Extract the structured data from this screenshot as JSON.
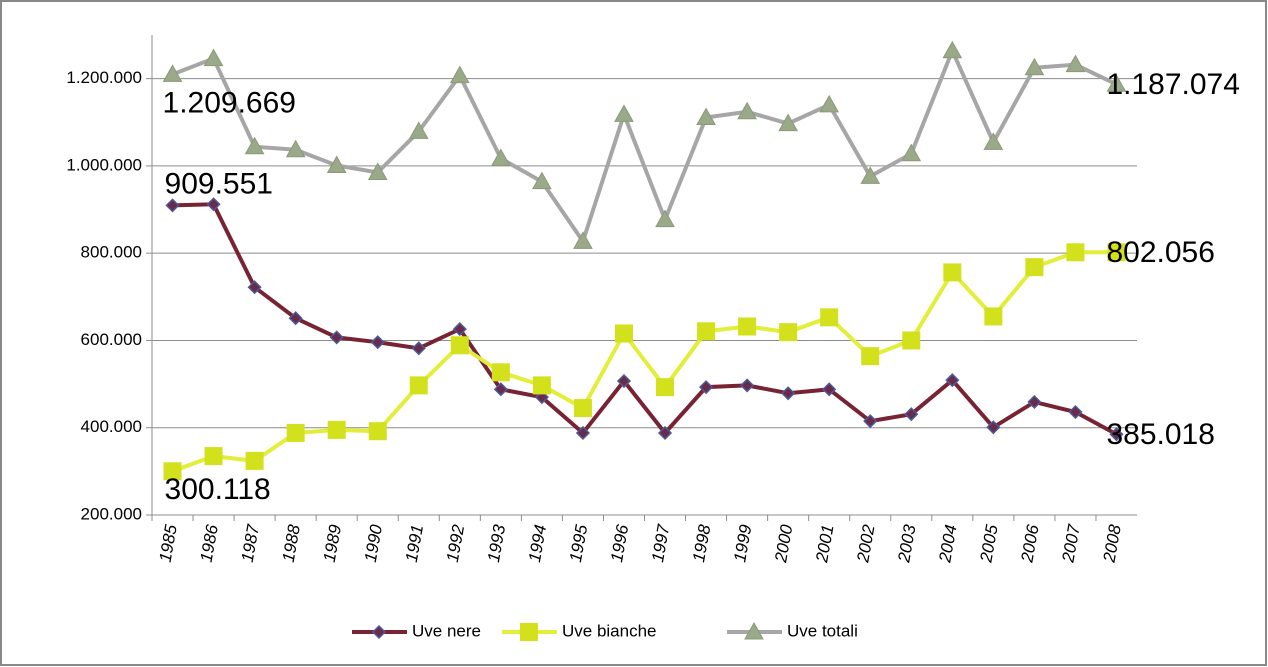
{
  "chart_data": {
    "type": "line",
    "categories": [
      "1985",
      "1986",
      "1987",
      "1988",
      "1989",
      "1990",
      "1991",
      "1992",
      "1993",
      "1994",
      "1995",
      "1996",
      "1997",
      "1998",
      "1999",
      "2000",
      "2001",
      "2002",
      "2003",
      "2004",
      "2005",
      "2006",
      "2007",
      "2008"
    ],
    "series": [
      {
        "name": "Uve nere",
        "color": "#772333",
        "marker": "diamond",
        "values": [
          909551,
          912000,
          722000,
          651000,
          607000,
          596000,
          582000,
          626000,
          488000,
          470000,
          388000,
          507000,
          388000,
          493000,
          497000,
          479000,
          488000,
          415000,
          431000,
          509000,
          401000,
          459000,
          436000,
          385018
        ],
        "value_labels": [
          "909.551",
          null,
          null,
          null,
          null,
          null,
          null,
          null,
          null,
          null,
          null,
          null,
          null,
          null,
          null,
          null,
          null,
          null,
          null,
          null,
          null,
          null,
          null,
          "385.018"
        ]
      },
      {
        "name": "Uve bianche",
        "color": "#e2ee3a",
        "marker": "square",
        "values": [
          300118,
          335000,
          324000,
          388000,
          395000,
          392000,
          497000,
          589000,
          527000,
          497000,
          445000,
          616000,
          493000,
          621000,
          632000,
          619000,
          653000,
          564000,
          600000,
          756000,
          655000,
          768000,
          802000,
          802056
        ],
        "value_labels": [
          "300.118",
          null,
          null,
          null,
          null,
          null,
          null,
          null,
          null,
          null,
          null,
          null,
          null,
          null,
          null,
          null,
          null,
          null,
          null,
          null,
          null,
          null,
          null,
          "802.056"
        ]
      },
      {
        "name": "Uve totali",
        "color": "#a6a6a6",
        "marker": "triangle",
        "values": [
          1209669,
          1246000,
          1044000,
          1037000,
          1001000,
          985000,
          1079000,
          1207000,
          1017000,
          964000,
          827000,
          1118000,
          877000,
          1111000,
          1124000,
          1097000,
          1140000,
          976000,
          1028000,
          1264000,
          1054000,
          1225000,
          1232000,
          1187074
        ],
        "value_labels": [
          "1.209.669",
          null,
          null,
          null,
          null,
          null,
          null,
          null,
          null,
          null,
          null,
          null,
          null,
          null,
          null,
          null,
          null,
          null,
          null,
          null,
          null,
          null,
          null,
          "1.187.074"
        ]
      }
    ],
    "ylim": [
      200000,
      1300000
    ],
    "yticks": [
      {
        "value": 200000,
        "label": "200.000"
      },
      {
        "value": 400000,
        "label": "400.000"
      },
      {
        "value": 600000,
        "label": "600.000"
      },
      {
        "value": 800000,
        "label": "800.000"
      },
      {
        "value": 1000000,
        "label": "1.000.000"
      },
      {
        "value": 1200000,
        "label": "1.200.000"
      }
    ],
    "grid": true,
    "legend": "bottom"
  }
}
